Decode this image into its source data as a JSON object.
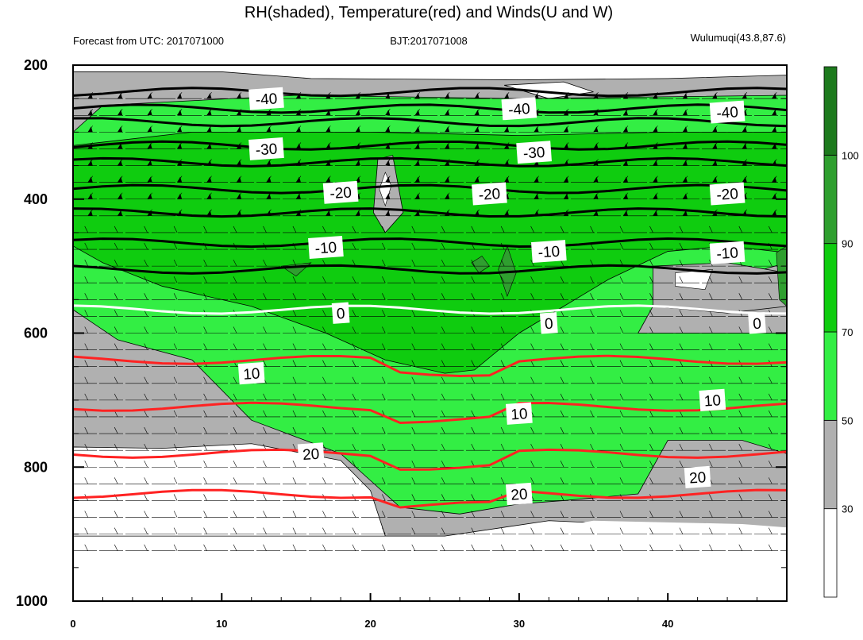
{
  "chart_data": {
    "type": "contour",
    "title": "RH(shaded), Temperature(red) and Winds(U and W)",
    "subtitle_left": "Forecast from UTC: 2017071000",
    "subtitle_center": "BJT:2017071008",
    "subtitle_right": "Wulumuqi(43.8,87.6)",
    "x_ticks": [
      0,
      10,
      20,
      30,
      40
    ],
    "y_ticks": [
      200,
      400,
      600,
      800,
      1000
    ],
    "xlim": [
      0,
      48
    ],
    "ylim": [
      200,
      1000
    ],
    "y_reversed": true,
    "colorbar": {
      "ticks": [
        30,
        50,
        70,
        90,
        100
      ],
      "levels": [
        {
          "from": 0,
          "to": 30,
          "color": "#ffffff"
        },
        {
          "from": 30,
          "to": 50,
          "color": "#b0b0b0"
        },
        {
          "from": 50,
          "to": 70,
          "color": "#33ee44"
        },
        {
          "from": 70,
          "to": 90,
          "color": "#0fcc0f"
        },
        {
          "from": 90,
          "to": 100,
          "color": "#2f9f2f"
        },
        {
          "from": 100,
          "to": 110,
          "color": "#1d7a1d"
        }
      ]
    },
    "temperature_contours": [
      {
        "value": -40,
        "color": "#000000",
        "pressure_levels": [
          240,
          265,
          285
        ]
      },
      {
        "value": -30,
        "color": "#000000",
        "pressure_levels": [
          320,
          345
        ]
      },
      {
        "value": -20,
        "color": "#000000",
        "pressure_levels": [
          385,
          420
        ]
      },
      {
        "value": -10,
        "color": "#000000",
        "pressure_levels": [
          465,
          505
        ]
      },
      {
        "value": 0,
        "color": "#ffffff",
        "pressure_levels": [
          565
        ]
      },
      {
        "value": 10,
        "color": "#ff2222",
        "pressure_levels": [
          640,
          710
        ]
      },
      {
        "value": 20,
        "color": "#ff2222",
        "pressure_levels": [
          780,
          840
        ]
      }
    ],
    "contour_labels": [
      {
        "text": "-40",
        "x": 13,
        "p": 250
      },
      {
        "text": "-40",
        "x": 30,
        "p": 265
      },
      {
        "text": "-40",
        "x": 44,
        "p": 270
      },
      {
        "text": "-30",
        "x": 13,
        "p": 325
      },
      {
        "text": "-30",
        "x": 31,
        "p": 330
      },
      {
        "text": "-20",
        "x": 18,
        "p": 390
      },
      {
        "text": "-20",
        "x": 28,
        "p": 392
      },
      {
        "text": "-20",
        "x": 44,
        "p": 392
      },
      {
        "text": "-10",
        "x": 17,
        "p": 472
      },
      {
        "text": "-10",
        "x": 32,
        "p": 478
      },
      {
        "text": "-10",
        "x": 44,
        "p": 480
      },
      {
        "text": "0",
        "x": 18,
        "p": 570
      },
      {
        "text": "0",
        "x": 32,
        "p": 585
      },
      {
        "text": "0",
        "x": 46,
        "p": 585
      },
      {
        "text": "10",
        "x": 12,
        "p": 660
      },
      {
        "text": "10",
        "x": 30,
        "p": 720
      },
      {
        "text": "10",
        "x": 43,
        "p": 700
      },
      {
        "text": "20",
        "x": 16,
        "p": 780
      },
      {
        "text": "20",
        "x": 30,
        "p": 840
      },
      {
        "text": "20",
        "x": 42,
        "p": 815
      }
    ],
    "wind_barb_levels": [
      250,
      275,
      300,
      325,
      350,
      375,
      400,
      425,
      450,
      475,
      500,
      525,
      550,
      575,
      600,
      625,
      650,
      675,
      700,
      725,
      750,
      775,
      800,
      825,
      850,
      875,
      900,
      925
    ]
  }
}
